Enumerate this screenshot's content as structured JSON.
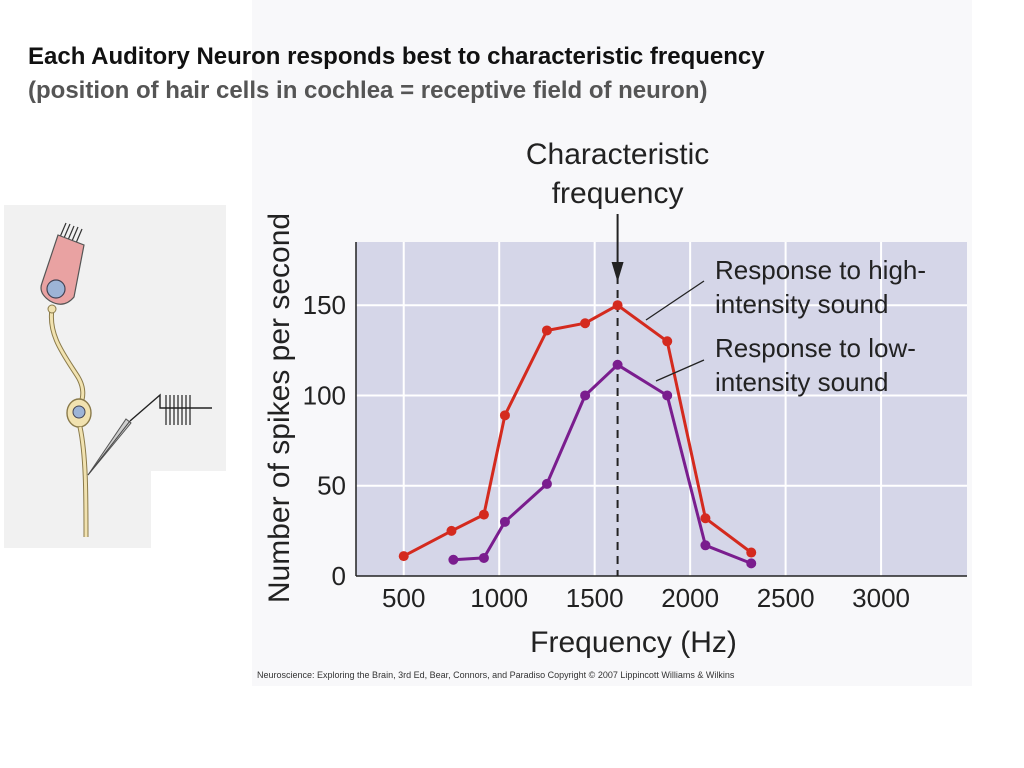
{
  "slide": {
    "title": "Each Auditory Neuron responds best to characteristic frequency",
    "subtitle": "(position of hair cells in cochlea = receptive field of neuron)"
  },
  "credit": "Neuroscience: Exploring the Brain, 3rd Ed, Bear, Connors, and Paradiso Copyright © 2007 Lippincott Williams & Wilkins",
  "chart_data": {
    "type": "line",
    "xlabel": "Frequency (Hz)",
    "ylabel": "Number of spikes per second",
    "xlim": [
      250,
      3450
    ],
    "ylim": [
      0,
      185
    ],
    "x_ticks": [
      500,
      1000,
      1500,
      2000,
      2500,
      3000
    ],
    "y_ticks": [
      0,
      50,
      100,
      150
    ],
    "grid": true,
    "series": [
      {
        "name": "Response to high-intensity sound",
        "label_lines": [
          "Response to high-",
          "intensity sound"
        ],
        "color": "#d42a1e",
        "points": [
          [
            500,
            11
          ],
          [
            750,
            25
          ],
          [
            920,
            34
          ],
          [
            1030,
            89
          ],
          [
            1250,
            136
          ],
          [
            1450,
            140
          ],
          [
            1620,
            150
          ],
          [
            1880,
            130
          ],
          [
            2080,
            32
          ],
          [
            2320,
            13
          ]
        ]
      },
      {
        "name": "Response to low-intensity sound",
        "label_lines": [
          "Response to low-",
          "intensity sound"
        ],
        "color": "#7a1d8e",
        "points": [
          [
            760,
            9
          ],
          [
            920,
            10
          ],
          [
            1030,
            30
          ],
          [
            1250,
            51
          ],
          [
            1450,
            100
          ],
          [
            1620,
            117
          ],
          [
            1880,
            100
          ],
          [
            2080,
            17
          ],
          [
            2320,
            7
          ]
        ]
      }
    ],
    "annotation": {
      "label_lines": [
        "Characteristic",
        "frequency"
      ],
      "x": 1620
    },
    "colors": {
      "plot_background": "#d5d6e8",
      "grid": "#ffffff"
    }
  }
}
